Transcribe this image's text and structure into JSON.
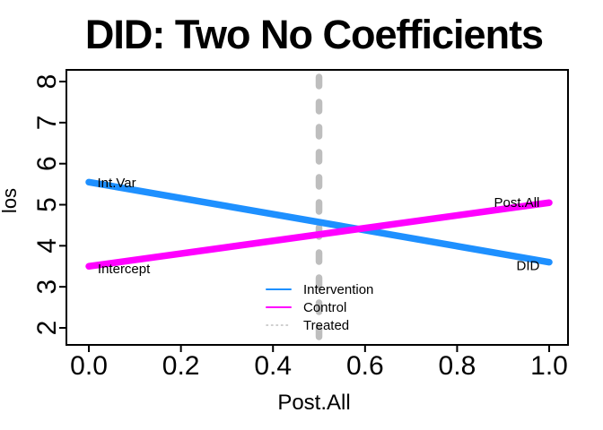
{
  "chart_data": {
    "type": "line",
    "title": "DID: Two No Coefficients",
    "xlabel": "Post.All",
    "ylabel": "los",
    "xlim": [
      -0.0488,
      1.0409
    ],
    "ylim": [
      1.585,
      8.285
    ],
    "grid": false,
    "x_ticks": [
      {
        "v": 0.0,
        "label": "0.0"
      },
      {
        "v": 0.2,
        "label": "0.2"
      },
      {
        "v": 0.4,
        "label": "0.4"
      },
      {
        "v": 0.6,
        "label": "0.6"
      },
      {
        "v": 0.8,
        "label": "0.8"
      },
      {
        "v": 1.0,
        "label": "1.0"
      }
    ],
    "y_ticks": [
      {
        "v": 2,
        "label": "2"
      },
      {
        "v": 3,
        "label": "3"
      },
      {
        "v": 4,
        "label": "4"
      },
      {
        "v": 5,
        "label": "5"
      },
      {
        "v": 6,
        "label": "6"
      },
      {
        "v": 7,
        "label": "7"
      },
      {
        "v": 8,
        "label": "8"
      }
    ],
    "series": [
      {
        "name": "Treated",
        "color": "#BEBEBE",
        "line_style": "dashed-thick",
        "line_width": 7.5,
        "vline_x": 0.5
      },
      {
        "name": "Intervention",
        "color": "#1E90FF",
        "line_style": "solid",
        "line_width": 7.5,
        "points": [
          [
            0,
            5.55
          ],
          [
            1,
            3.6
          ]
        ]
      },
      {
        "name": "Control",
        "color": "#FF00FF",
        "line_style": "solid",
        "line_width": 7.5,
        "points": [
          [
            0,
            3.5
          ],
          [
            1,
            5.05
          ]
        ]
      }
    ],
    "annotations": [
      {
        "text": "Int.Var",
        "x": 0.0605,
        "y": 5.535
      },
      {
        "text": "Intercept",
        "x": 0.0762,
        "y": 3.44
      },
      {
        "text": "Post.All",
        "x": 0.9297,
        "y": 5.054
      },
      {
        "text": "DID",
        "x": 0.954,
        "y": 3.52
      }
    ],
    "legend": {
      "position": "bottom-center",
      "entries": [
        {
          "label": "Intervention",
          "color": "#1E90FF",
          "style": "solid"
        },
        {
          "label": "Control",
          "color": "#FF00FF",
          "style": "solid"
        },
        {
          "label": "Treated",
          "color": "#BEBEBE",
          "style": "dotted"
        }
      ]
    },
    "colors": {
      "axis": "#000000",
      "background": "#FFFFFF",
      "annotation_text": "#000000"
    }
  }
}
